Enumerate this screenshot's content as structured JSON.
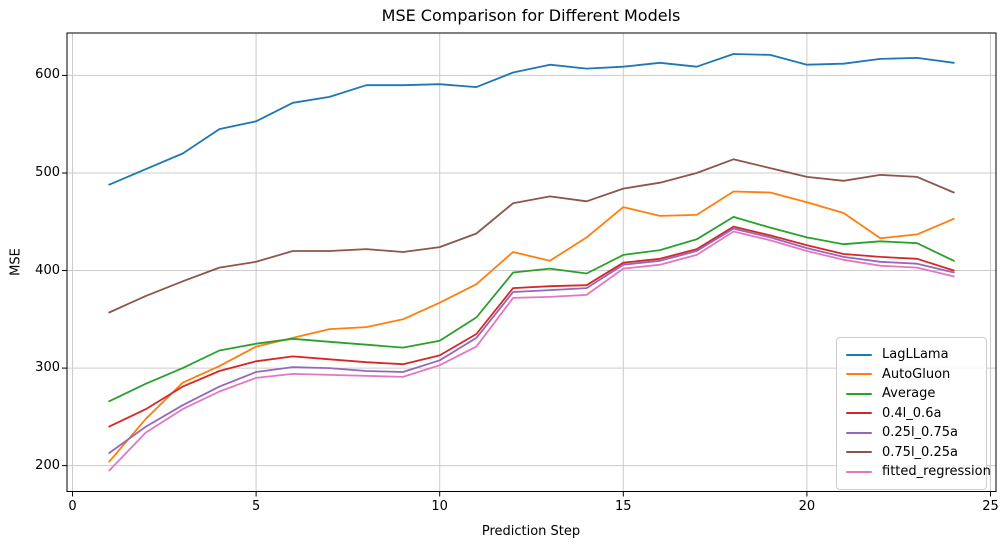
{
  "figure": {
    "title": "MSE Comparison for Different Models",
    "xlabel": "Prediction Step",
    "ylabel": "MSE"
  },
  "chart_data": {
    "type": "line",
    "title": "MSE Comparison for Different Models",
    "xlabel": "Prediction Step",
    "ylabel": "MSE",
    "x": [
      1,
      2,
      3,
      4,
      5,
      6,
      7,
      8,
      9,
      10,
      11,
      12,
      13,
      14,
      15,
      16,
      17,
      18,
      19,
      20,
      21,
      22,
      23,
      24
    ],
    "series": [
      {
        "name": "LagLLama",
        "color": "#1f77b4",
        "values": [
          488,
          504,
          520,
          545,
          553,
          572,
          578,
          590,
          590,
          591,
          588,
          603,
          611,
          607,
          609,
          613,
          609,
          622,
          621,
          611,
          612,
          617,
          618,
          613
        ]
      },
      {
        "name": "AutoGluon",
        "color": "#ff7f0e",
        "values": [
          204,
          248,
          285,
          302,
          322,
          331,
          340,
          342,
          350,
          367,
          386,
          419,
          410,
          434,
          465,
          456,
          457,
          481,
          480,
          470,
          459,
          433,
          437,
          453
        ]
      },
      {
        "name": "Average",
        "color": "#2ca02c",
        "values": [
          266,
          284,
          300,
          318,
          325,
          330,
          327,
          324,
          321,
          328,
          352,
          398,
          402,
          397,
          416,
          421,
          432,
          455,
          444,
          434,
          427,
          430,
          428,
          410
        ]
      },
      {
        "name": "0.4l_0.6a",
        "color": "#d62728",
        "values": [
          240,
          258,
          281,
          297,
          307,
          312,
          309,
          306,
          304,
          313,
          335,
          382,
          384,
          385,
          408,
          412,
          422,
          445,
          436,
          426,
          417,
          414,
          412,
          400
        ]
      },
      {
        "name": "0.25l_0.75a",
        "color": "#9467bd",
        "values": [
          213,
          240,
          262,
          281,
          296,
          301,
          300,
          297,
          296,
          308,
          331,
          378,
          380,
          382,
          406,
          410,
          420,
          443,
          434,
          423,
          414,
          409,
          407,
          398
        ]
      },
      {
        "name": "0.75l_0.25a",
        "color": "#8c564b",
        "values": [
          357,
          374,
          389,
          403,
          409,
          420,
          420,
          422,
          419,
          424,
          438,
          469,
          476,
          471,
          484,
          490,
          500,
          514,
          505,
          496,
          492,
          498,
          496,
          480
        ]
      },
      {
        "name": "fitted_regression",
        "color": "#e377c2",
        "values": [
          195,
          234,
          258,
          276,
          290,
          294,
          293,
          292,
          291,
          303,
          322,
          372,
          373,
          375,
          402,
          406,
          416,
          440,
          431,
          420,
          411,
          405,
          403,
          394
        ]
      }
    ],
    "xticks": [
      0,
      5,
      10,
      15,
      20,
      25
    ],
    "yticks": [
      200,
      300,
      400,
      500,
      600
    ],
    "xlim": [
      -0.15,
      25.15
    ],
    "ylim": [
      173.5,
      643.5
    ],
    "grid": true,
    "legend_position": "lower right",
    "style": {
      "background": "#ffffff",
      "grid_color": "#cccccc",
      "spine_color": "#000000",
      "text_color": "#000000",
      "line_width": 1.8
    }
  }
}
